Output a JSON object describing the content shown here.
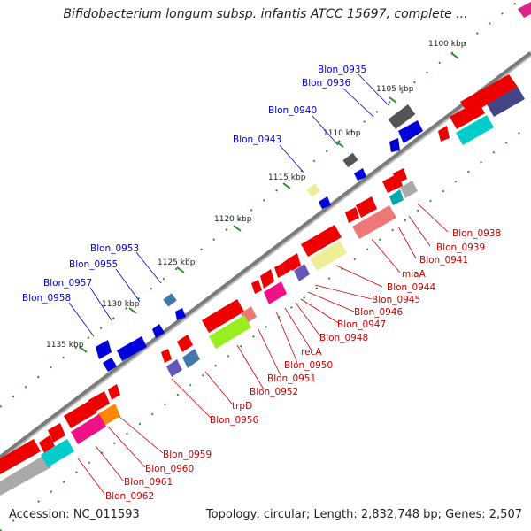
{
  "title": "Bifidobacterium longum subsp. infantis ATCC 15697, complete ...",
  "accession": "Accession: NC_011593",
  "summary": "Topology: circular; Length: 2,832,748 bp; Genes: 2,507",
  "ticks": [
    "1100 kbp",
    "1105 kbp",
    "1110 kbp",
    "1115 kbp",
    "1120 kbp",
    "1125 kbp",
    "1130 kbp",
    "1135 kbp"
  ],
  "forward_labels": [
    "Blon_0935",
    "Blon_0936",
    "Blon_0940",
    "Blon_0943",
    "Blon_0953",
    "Blon_0955",
    "Blon_0957",
    "Blon_0958"
  ],
  "reverse_labels": [
    "Blon_0938",
    "Blon_0939",
    "Blon_0941",
    "miaA",
    "Blon_0944",
    "Blon_0945",
    "Blon_0946",
    "Blon_0947",
    "Blon_0948",
    "recA",
    "Blon_0950",
    "Blon_0951",
    "Blon_0952",
    "trpD",
    "Blon_0956",
    "Blon_0959",
    "Blon_0960",
    "Blon_0961",
    "Blon_0962"
  ],
  "colors": {
    "forward_gene": "#0000dd",
    "reverse_gene": "#ee0000",
    "backbone": "#888888",
    "tick": "#228b22"
  }
}
